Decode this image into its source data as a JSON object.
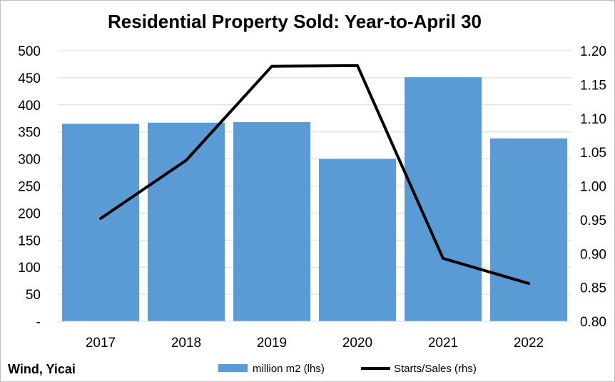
{
  "chart_data": {
    "type": "bar",
    "title": "Residential Property Sold: Year-to-April 30",
    "categories": [
      "2017",
      "2018",
      "2019",
      "2020",
      "2021",
      "2022"
    ],
    "series": [
      {
        "name": "million m2 (lhs)",
        "type": "bar",
        "axis": "left",
        "color": "#5b9bd5",
        "values": [
          365,
          367,
          368,
          300,
          451,
          338
        ]
      },
      {
        "name": "Starts/Sales (rhs)",
        "type": "line",
        "axis": "right",
        "color": "#000000",
        "values": [
          0.952,
          1.038,
          1.177,
          1.178,
          0.893,
          0.856
        ]
      }
    ],
    "ylim_left": [
      0,
      500
    ],
    "ylim_right": [
      0.8,
      1.2
    ],
    "yticks_left": [
      "-",
      "50",
      "100",
      "150",
      "200",
      "250",
      "300",
      "350",
      "400",
      "450",
      "500"
    ],
    "yticks_right": [
      "0.80",
      "0.85",
      "0.90",
      "0.95",
      "1.00",
      "1.05",
      "1.10",
      "1.15",
      "1.20"
    ],
    "grid": true,
    "legend_position": "bottom"
  },
  "source": "Wind, Yicai"
}
